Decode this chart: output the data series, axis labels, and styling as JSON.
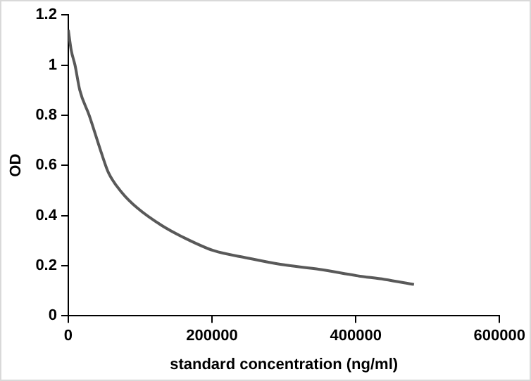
{
  "chart_data": {
    "type": "line",
    "xlabel": "standard concentration (ng/ml)",
    "ylabel": "OD",
    "xlim": [
      0,
      600000
    ],
    "xticks": [
      0,
      200000,
      400000,
      600000
    ],
    "ylim": [
      0,
      1.2
    ],
    "yticks": [
      0,
      0.2,
      0.4,
      0.6,
      0.8,
      1,
      1.2
    ],
    "grid": false,
    "legend": false,
    "marker": "none",
    "line_style": "solid",
    "series": [
      {
        "color": "#595959",
        "x": [
          0,
          4000,
          9300,
          16000,
          29000,
          46000,
          56000,
          75000,
          96000,
          130000,
          162000,
          202000,
          250000,
          295000,
          350000,
          401000,
          440000,
          481000
        ],
        "values": [
          1.14,
          1.06,
          1.0,
          0.9,
          0.8,
          0.65,
          0.57,
          0.49,
          0.43,
          0.36,
          0.31,
          0.26,
          0.23,
          0.205,
          0.185,
          0.16,
          0.145,
          0.125
        ]
      }
    ]
  }
}
